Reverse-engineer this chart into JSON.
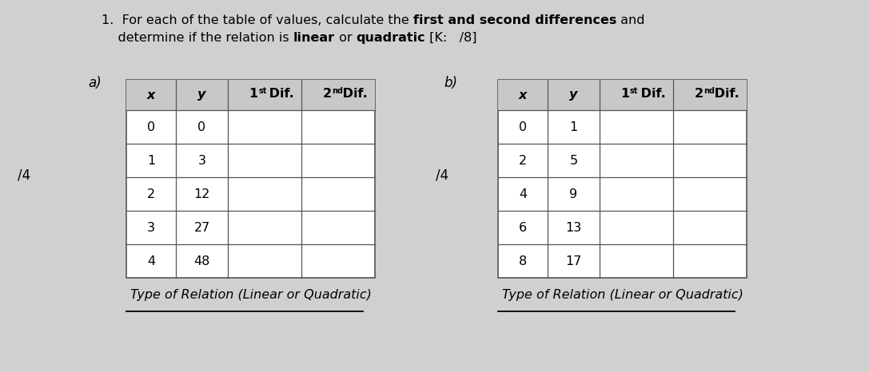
{
  "background_color": "#d0d0d0",
  "table_a_x": [
    "0",
    "1",
    "2",
    "3",
    "4"
  ],
  "table_a_y": [
    "0",
    "3",
    "12",
    "27",
    "48"
  ],
  "table_b_x": [
    "0",
    "2",
    "4",
    "6",
    "8"
  ],
  "table_b_y": [
    "1",
    "5",
    "9",
    "13",
    "17"
  ],
  "type_of_relation_text": "Type of Relation (Linear or Quadratic)",
  "fig_width": 10.87,
  "fig_height": 4.66,
  "dpi": 100
}
